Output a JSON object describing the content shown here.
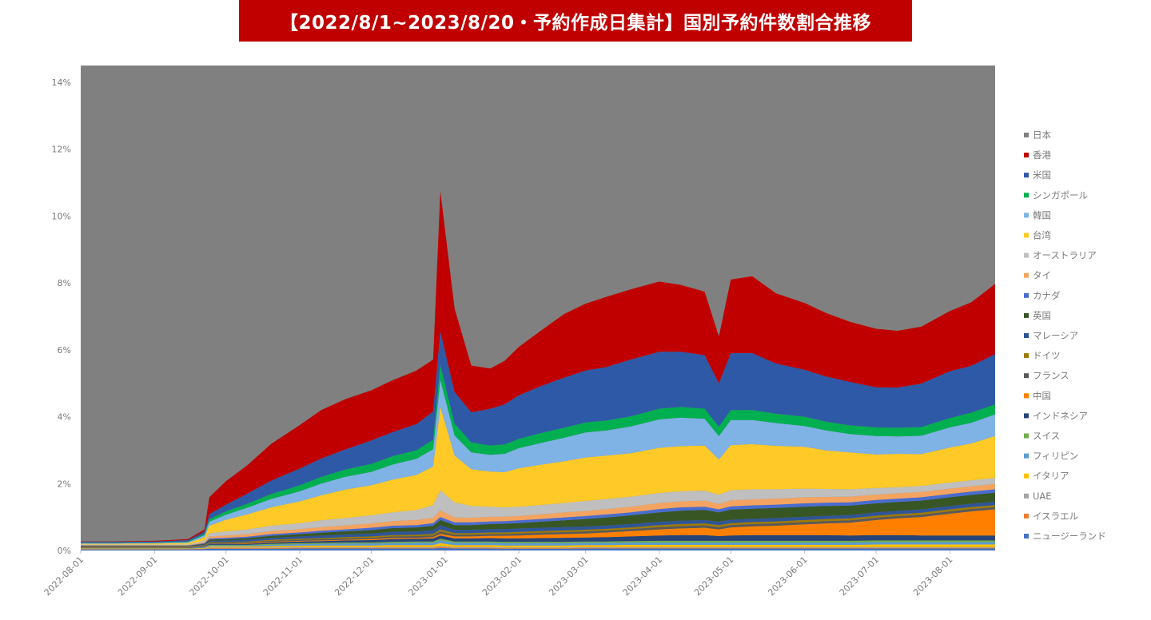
{
  "title": "【2022/8/1~2023/8/20・予約作成日集計】国別予約件数割合推移",
  "chart_data": {
    "type": "area",
    "stacked": true,
    "title": "【2022/8/1~2023/8/20・予約作成日集計】国別予約件数割合推移",
    "xlabel": "",
    "ylabel": "",
    "x_range": [
      "2022-08-01",
      "2023-08-20"
    ],
    "ylim": [
      0,
      14.5
    ],
    "y_ticks": [
      "0%",
      "2%",
      "4%",
      "6%",
      "8%",
      "10%",
      "12%",
      "14%"
    ],
    "x_ticks": [
      "2022-08-01",
      "2022-09-01",
      "2022-10-01",
      "2022-11-01",
      "2022-12-01",
      "2023-01-01",
      "2023-02-01",
      "2023-03-01",
      "2023-04-01",
      "2023-05-01",
      "2023-06-01",
      "2023-07-01",
      "2023-08-01"
    ],
    "legend_position": "right",
    "background_series": {
      "name": "日本",
      "color": "#808080"
    },
    "dates": [
      "2022-08-01",
      "2022-08-15",
      "2022-09-01",
      "2022-09-15",
      "2022-09-22",
      "2022-09-24",
      "2022-10-01",
      "2022-10-10",
      "2022-10-20",
      "2022-11-01",
      "2022-11-10",
      "2022-11-20",
      "2022-12-01",
      "2022-12-10",
      "2022-12-20",
      "2022-12-27",
      "2022-12-30",
      "2023-01-05",
      "2023-01-12",
      "2023-01-20",
      "2023-01-26",
      "2023-02-01",
      "2023-02-10",
      "2023-02-20",
      "2023-03-01",
      "2023-03-10",
      "2023-03-20",
      "2023-04-01",
      "2023-04-10",
      "2023-04-20",
      "2023-04-26",
      "2023-05-01",
      "2023-05-10",
      "2023-05-20",
      "2023-06-01",
      "2023-06-10",
      "2023-06-20",
      "2023-07-01",
      "2023-07-10",
      "2023-07-20",
      "2023-08-01",
      "2023-08-10",
      "2023-08-20"
    ],
    "series": [
      {
        "name": "ニュージーランド",
        "color": "#4472c4",
        "values": [
          0.03,
          0.03,
          0.03,
          0.03,
          0.04,
          0.05,
          0.05,
          0.05,
          0.05,
          0.06,
          0.06,
          0.06,
          0.06,
          0.06,
          0.06,
          0.06,
          0.08,
          0.06,
          0.06,
          0.06,
          0.05,
          0.05,
          0.05,
          0.05,
          0.06,
          0.06,
          0.06,
          0.06,
          0.06,
          0.06,
          0.06,
          0.06,
          0.06,
          0.06,
          0.06,
          0.06,
          0.06,
          0.06,
          0.06,
          0.06,
          0.06,
          0.06,
          0.06
        ]
      },
      {
        "name": "イスラエル",
        "color": "#ed7d31",
        "values": [
          0.01,
          0.01,
          0.01,
          0.01,
          0.01,
          0.02,
          0.02,
          0.02,
          0.02,
          0.02,
          0.02,
          0.02,
          0.02,
          0.02,
          0.02,
          0.02,
          0.03,
          0.02,
          0.02,
          0.02,
          0.02,
          0.02,
          0.02,
          0.02,
          0.02,
          0.02,
          0.02,
          0.02,
          0.02,
          0.02,
          0.02,
          0.02,
          0.02,
          0.02,
          0.02,
          0.02,
          0.02,
          0.02,
          0.02,
          0.02,
          0.02,
          0.02,
          0.02
        ]
      },
      {
        "name": "UAE",
        "color": "#a5a5a5",
        "values": [
          0.01,
          0.01,
          0.01,
          0.01,
          0.01,
          0.02,
          0.02,
          0.02,
          0.02,
          0.02,
          0.02,
          0.02,
          0.02,
          0.02,
          0.02,
          0.02,
          0.03,
          0.02,
          0.02,
          0.02,
          0.02,
          0.02,
          0.02,
          0.02,
          0.02,
          0.02,
          0.02,
          0.02,
          0.02,
          0.02,
          0.02,
          0.02,
          0.02,
          0.02,
          0.02,
          0.02,
          0.02,
          0.02,
          0.02,
          0.02,
          0.02,
          0.02,
          0.02
        ]
      },
      {
        "name": "イタリア",
        "color": "#ffc000",
        "values": [
          0.01,
          0.01,
          0.01,
          0.01,
          0.02,
          0.03,
          0.03,
          0.03,
          0.04,
          0.04,
          0.05,
          0.05,
          0.05,
          0.06,
          0.06,
          0.06,
          0.08,
          0.06,
          0.06,
          0.06,
          0.06,
          0.06,
          0.06,
          0.06,
          0.06,
          0.06,
          0.07,
          0.07,
          0.07,
          0.07,
          0.07,
          0.07,
          0.07,
          0.07,
          0.07,
          0.07,
          0.07,
          0.08,
          0.08,
          0.08,
          0.08,
          0.08,
          0.08
        ]
      },
      {
        "name": "フィリピン",
        "color": "#5b9bd5",
        "values": [
          0.01,
          0.01,
          0.01,
          0.01,
          0.02,
          0.03,
          0.03,
          0.03,
          0.04,
          0.05,
          0.05,
          0.06,
          0.06,
          0.06,
          0.07,
          0.07,
          0.08,
          0.07,
          0.07,
          0.07,
          0.07,
          0.07,
          0.07,
          0.07,
          0.07,
          0.07,
          0.07,
          0.07,
          0.07,
          0.07,
          0.07,
          0.07,
          0.07,
          0.07,
          0.07,
          0.07,
          0.07,
          0.07,
          0.07,
          0.07,
          0.07,
          0.07,
          0.07
        ]
      },
      {
        "name": "スイス",
        "color": "#70ad47",
        "values": [
          0.01,
          0.01,
          0.01,
          0.01,
          0.01,
          0.02,
          0.02,
          0.02,
          0.03,
          0.03,
          0.03,
          0.03,
          0.03,
          0.04,
          0.04,
          0.04,
          0.05,
          0.04,
          0.04,
          0.04,
          0.04,
          0.04,
          0.04,
          0.04,
          0.04,
          0.04,
          0.04,
          0.05,
          0.05,
          0.05,
          0.05,
          0.05,
          0.05,
          0.05,
          0.05,
          0.05,
          0.05,
          0.05,
          0.05,
          0.05,
          0.05,
          0.05,
          0.05
        ]
      },
      {
        "name": "インドネシア",
        "color": "#264478",
        "values": [
          0.01,
          0.01,
          0.01,
          0.01,
          0.02,
          0.03,
          0.03,
          0.03,
          0.04,
          0.05,
          0.05,
          0.06,
          0.07,
          0.08,
          0.08,
          0.09,
          0.1,
          0.09,
          0.09,
          0.1,
          0.1,
          0.1,
          0.11,
          0.12,
          0.12,
          0.13,
          0.14,
          0.16,
          0.17,
          0.17,
          0.14,
          0.16,
          0.17,
          0.17,
          0.17,
          0.17,
          0.16,
          0.16,
          0.16,
          0.15,
          0.15,
          0.15,
          0.15
        ]
      },
      {
        "name": "中国",
        "color": "#ff8000",
        "values": [
          0.01,
          0.01,
          0.01,
          0.01,
          0.01,
          0.01,
          0.01,
          0.02,
          0.02,
          0.02,
          0.02,
          0.02,
          0.03,
          0.03,
          0.03,
          0.04,
          0.05,
          0.06,
          0.06,
          0.07,
          0.08,
          0.09,
          0.1,
          0.11,
          0.12,
          0.14,
          0.16,
          0.18,
          0.2,
          0.22,
          0.2,
          0.24,
          0.26,
          0.28,
          0.32,
          0.35,
          0.38,
          0.45,
          0.5,
          0.55,
          0.65,
          0.72,
          0.78
        ]
      },
      {
        "name": "フランス",
        "color": "#595959",
        "values": [
          0.01,
          0.01,
          0.01,
          0.01,
          0.01,
          0.02,
          0.02,
          0.03,
          0.03,
          0.03,
          0.04,
          0.04,
          0.04,
          0.05,
          0.05,
          0.05,
          0.07,
          0.05,
          0.05,
          0.05,
          0.05,
          0.06,
          0.06,
          0.06,
          0.06,
          0.06,
          0.06,
          0.07,
          0.07,
          0.07,
          0.07,
          0.07,
          0.07,
          0.07,
          0.07,
          0.07,
          0.07,
          0.07,
          0.07,
          0.07,
          0.07,
          0.07,
          0.07
        ]
      },
      {
        "name": "ドイツ",
        "color": "#9e7b00",
        "values": [
          0.01,
          0.01,
          0.01,
          0.01,
          0.01,
          0.02,
          0.02,
          0.02,
          0.03,
          0.03,
          0.03,
          0.04,
          0.04,
          0.04,
          0.04,
          0.05,
          0.06,
          0.05,
          0.05,
          0.05,
          0.05,
          0.05,
          0.05,
          0.05,
          0.05,
          0.05,
          0.05,
          0.06,
          0.06,
          0.06,
          0.06,
          0.06,
          0.06,
          0.06,
          0.06,
          0.06,
          0.06,
          0.06,
          0.06,
          0.06,
          0.06,
          0.06,
          0.06
        ]
      },
      {
        "name": "マレーシア",
        "color": "#2f5597",
        "values": [
          0.01,
          0.01,
          0.01,
          0.01,
          0.02,
          0.04,
          0.05,
          0.05,
          0.06,
          0.07,
          0.08,
          0.08,
          0.09,
          0.1,
          0.1,
          0.11,
          0.13,
          0.1,
          0.1,
          0.1,
          0.1,
          0.1,
          0.1,
          0.1,
          0.1,
          0.1,
          0.1,
          0.1,
          0.1,
          0.1,
          0.1,
          0.1,
          0.1,
          0.1,
          0.1,
          0.1,
          0.1,
          0.1,
          0.1,
          0.1,
          0.1,
          0.1,
          0.1
        ]
      },
      {
        "name": "英国",
        "color": "#375623",
        "values": [
          0.01,
          0.01,
          0.01,
          0.01,
          0.02,
          0.04,
          0.04,
          0.05,
          0.06,
          0.07,
          0.08,
          0.09,
          0.1,
          0.11,
          0.12,
          0.13,
          0.15,
          0.14,
          0.14,
          0.15,
          0.16,
          0.16,
          0.18,
          0.2,
          0.22,
          0.24,
          0.26,
          0.28,
          0.3,
          0.3,
          0.28,
          0.3,
          0.3,
          0.3,
          0.3,
          0.29,
          0.28,
          0.27,
          0.26,
          0.26,
          0.26,
          0.26,
          0.27
        ]
      },
      {
        "name": "カナダ",
        "color": "#4a6ccf",
        "values": [
          0.01,
          0.01,
          0.01,
          0.01,
          0.02,
          0.03,
          0.04,
          0.04,
          0.05,
          0.05,
          0.06,
          0.06,
          0.07,
          0.07,
          0.07,
          0.08,
          0.09,
          0.08,
          0.08,
          0.08,
          0.08,
          0.08,
          0.08,
          0.09,
          0.09,
          0.09,
          0.09,
          0.1,
          0.1,
          0.1,
          0.09,
          0.1,
          0.1,
          0.1,
          0.1,
          0.1,
          0.1,
          0.1,
          0.1,
          0.1,
          0.1,
          0.1,
          0.1
        ]
      },
      {
        "name": "タイ",
        "color": "#f4a460",
        "values": [
          0.01,
          0.01,
          0.01,
          0.01,
          0.03,
          0.06,
          0.07,
          0.08,
          0.09,
          0.1,
          0.11,
          0.12,
          0.13,
          0.14,
          0.15,
          0.16,
          0.2,
          0.15,
          0.14,
          0.14,
          0.13,
          0.13,
          0.14,
          0.15,
          0.15,
          0.16,
          0.17,
          0.18,
          0.18,
          0.18,
          0.16,
          0.18,
          0.18,
          0.18,
          0.18,
          0.17,
          0.17,
          0.16,
          0.16,
          0.16,
          0.16,
          0.16,
          0.16
        ]
      },
      {
        "name": "オーストラリア",
        "color": "#bfbfbf",
        "values": [
          0.02,
          0.02,
          0.02,
          0.02,
          0.05,
          0.1,
          0.12,
          0.14,
          0.16,
          0.18,
          0.2,
          0.22,
          0.24,
          0.26,
          0.3,
          0.38,
          0.6,
          0.45,
          0.35,
          0.3,
          0.28,
          0.28,
          0.28,
          0.28,
          0.3,
          0.3,
          0.3,
          0.3,
          0.3,
          0.3,
          0.28,
          0.3,
          0.3,
          0.28,
          0.26,
          0.24,
          0.22,
          0.2,
          0.18,
          0.18,
          0.18,
          0.18,
          0.18
        ]
      },
      {
        "name": "台湾",
        "color": "#ffca28",
        "values": [
          0.02,
          0.02,
          0.03,
          0.04,
          0.1,
          0.22,
          0.35,
          0.45,
          0.55,
          0.65,
          0.75,
          0.85,
          0.9,
          0.98,
          1.05,
          1.15,
          2.5,
          1.4,
          1.1,
          1.05,
          1.05,
          1.15,
          1.2,
          1.25,
          1.3,
          1.3,
          1.3,
          1.35,
          1.35,
          1.35,
          1.05,
          1.35,
          1.35,
          1.3,
          1.25,
          1.15,
          1.1,
          1.0,
          1.0,
          0.95,
          1.05,
          1.1,
          1.25
        ]
      },
      {
        "name": "韓国",
        "color": "#7fb2e5",
        "values": [
          0.02,
          0.02,
          0.02,
          0.03,
          0.06,
          0.12,
          0.15,
          0.2,
          0.25,
          0.3,
          0.35,
          0.38,
          0.4,
          0.45,
          0.48,
          0.52,
          0.8,
          0.6,
          0.5,
          0.5,
          0.55,
          0.6,
          0.65,
          0.7,
          0.75,
          0.75,
          0.8,
          0.85,
          0.85,
          0.8,
          0.7,
          0.75,
          0.72,
          0.68,
          0.62,
          0.6,
          0.55,
          0.55,
          0.52,
          0.55,
          0.6,
          0.62,
          0.65
        ]
      },
      {
        "name": "シンガポール",
        "color": "#00b050",
        "values": [
          0.01,
          0.01,
          0.01,
          0.02,
          0.04,
          0.08,
          0.1,
          0.12,
          0.15,
          0.18,
          0.2,
          0.22,
          0.24,
          0.25,
          0.26,
          0.28,
          0.45,
          0.35,
          0.3,
          0.28,
          0.28,
          0.28,
          0.3,
          0.3,
          0.3,
          0.3,
          0.3,
          0.32,
          0.32,
          0.3,
          0.28,
          0.3,
          0.3,
          0.28,
          0.28,
          0.26,
          0.26,
          0.26,
          0.26,
          0.26,
          0.28,
          0.3,
          0.3
        ]
      },
      {
        "name": "米国",
        "color": "#2e59a6",
        "values": [
          0.03,
          0.03,
          0.03,
          0.04,
          0.07,
          0.15,
          0.2,
          0.3,
          0.4,
          0.5,
          0.55,
          0.6,
          0.7,
          0.72,
          0.78,
          0.85,
          1.0,
          0.95,
          0.9,
          1.1,
          1.2,
          1.3,
          1.4,
          1.5,
          1.55,
          1.6,
          1.7,
          1.7,
          1.65,
          1.6,
          1.3,
          1.7,
          1.7,
          1.5,
          1.4,
          1.35,
          1.3,
          1.2,
          1.2,
          1.3,
          1.4,
          1.4,
          1.5
        ]
      },
      {
        "name": "香港",
        "color": "#c00000",
        "values": [
          0.01,
          0.01,
          0.02,
          0.03,
          0.06,
          0.5,
          0.7,
          0.85,
          1.1,
          1.3,
          1.45,
          1.5,
          1.5,
          1.55,
          1.6,
          1.55,
          4.2,
          2.5,
          1.4,
          1.2,
          1.3,
          1.45,
          1.65,
          1.9,
          2.0,
          2.1,
          2.1,
          2.1,
          2.0,
          1.9,
          1.4,
          2.2,
          2.3,
          2.1,
          2.0,
          1.9,
          1.8,
          1.75,
          1.7,
          1.7,
          1.8,
          1.9,
          2.1
        ]
      }
    ],
    "legend": [
      "日本",
      "香港",
      "米国",
      "シンガポール",
      "韓国",
      "台湾",
      "オーストラリア",
      "タイ",
      "カナダ",
      "英国",
      "マレーシア",
      "ドイツ",
      "フランス",
      "中国",
      "インドネシア",
      "スイス",
      "フィリピン",
      "イタリア",
      "UAE",
      "イスラエル",
      "ニュージーランド"
    ],
    "legend_colors": [
      "#808080",
      "#c00000",
      "#2e59a6",
      "#00b050",
      "#7fb2e5",
      "#ffca28",
      "#bfbfbf",
      "#f4a460",
      "#4a6ccf",
      "#375623",
      "#2f5597",
      "#9e7b00",
      "#595959",
      "#ff8000",
      "#264478",
      "#70ad47",
      "#5b9bd5",
      "#ffc000",
      "#a5a5a5",
      "#ed7d31",
      "#4472c4"
    ],
    "grid": false
  }
}
